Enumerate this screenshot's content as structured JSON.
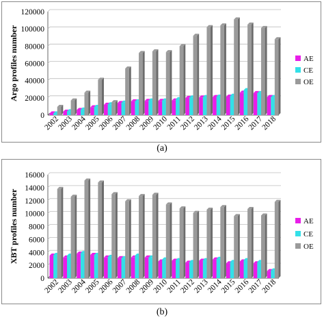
{
  "chart_data": [
    {
      "type": "bar",
      "panel_label": "(a)",
      "ylabel": "Argo profiles number",
      "ylim": [
        0,
        120000
      ],
      "yticks": [
        0,
        20000,
        40000,
        60000,
        80000,
        100000,
        120000
      ],
      "grid": true,
      "legend_position": "right",
      "categories": [
        "2002",
        "2003",
        "2004",
        "2005",
        "2006",
        "2007",
        "2008",
        "2009",
        "2010",
        "2011",
        "2012",
        "2013",
        "2014",
        "2015",
        "2016",
        "2017",
        "2018"
      ],
      "series": [
        {
          "name": "AE",
          "color": "#e81ee8",
          "values": [
            2000,
            4000,
            6000,
            9000,
            12000,
            14000,
            16000,
            16500,
            16500,
            17000,
            20000,
            20500,
            21000,
            21500,
            26000,
            25500,
            21000
          ]
        },
        {
          "name": "CE",
          "color": "#33e0e8",
          "values": [
            2000,
            4500,
            6500,
            9500,
            12500,
            14500,
            16000,
            17000,
            17000,
            18500,
            20500,
            21000,
            21500,
            22500,
            29000,
            25500,
            21000
          ]
        },
        {
          "name": "OE",
          "color": "#9a9a9a",
          "values": [
            9500,
            17000,
            26000,
            41000,
            15000,
            54000,
            72000,
            74000,
            73000,
            80000,
            92000,
            102000,
            104000,
            111000,
            105000,
            101000,
            88000
          ]
        }
      ]
    },
    {
      "type": "bar",
      "panel_label": "(b)",
      "ylabel": "XBT profiles number",
      "ylim": [
        0,
        16000
      ],
      "yticks": [
        0,
        2000,
        4000,
        6000,
        8000,
        10000,
        12000,
        14000,
        16000
      ],
      "grid": true,
      "legend_position": "right",
      "categories": [
        "2002",
        "2003",
        "2004",
        "2005",
        "2006",
        "2007",
        "2008",
        "2009",
        "2010",
        "2011",
        "2012",
        "2013",
        "2014",
        "2015",
        "2016",
        "2017",
        "2018"
      ],
      "series": [
        {
          "name": "AE",
          "color": "#e81ee8",
          "values": [
            3500,
            3200,
            3800,
            3600,
            3200,
            3100,
            3200,
            3200,
            2600,
            2700,
            2400,
            2700,
            2900,
            2300,
            2600,
            2300,
            1100
          ]
        },
        {
          "name": "CE",
          "color": "#33e0e8",
          "values": [
            3600,
            3500,
            3900,
            3600,
            3300,
            3100,
            3500,
            3200,
            2900,
            2800,
            2500,
            2800,
            3000,
            2500,
            2800,
            2500,
            1200
          ]
        },
        {
          "name": "OE",
          "color": "#9a9a9a",
          "values": [
            13800,
            12600,
            15100,
            14800,
            13000,
            11900,
            12700,
            12900,
            11400,
            10800,
            10100,
            10600,
            11000,
            9600,
            10700,
            9700,
            11800
          ]
        }
      ]
    }
  ]
}
